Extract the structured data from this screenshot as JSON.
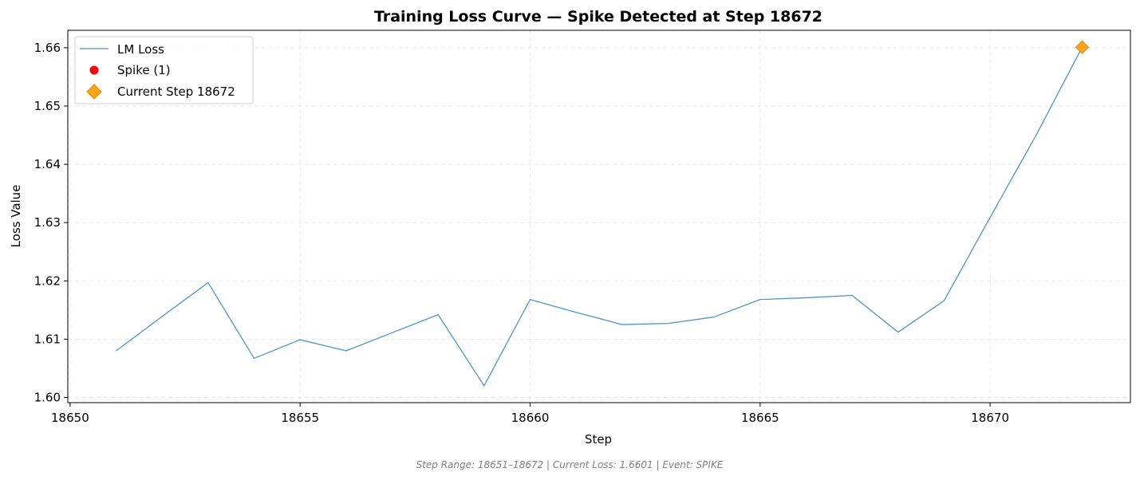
{
  "colors": {
    "line": "#4a96c6",
    "spike": "#ff0000",
    "current": "#ffa31a",
    "current_edge": "#e08a00",
    "grid": "#e3e3e3"
  },
  "chart_data": {
    "type": "line",
    "title": "Training Loss Curve — Spike Detected at Step 18672",
    "xlabel": "Step",
    "ylabel": "Loss Value",
    "xlim": [
      18649.95,
      18673.05
    ],
    "ylim": [
      1.5991,
      1.663
    ],
    "xticks": [
      18650,
      18655,
      18660,
      18665,
      18670
    ],
    "yticks": [
      1.6,
      1.61,
      1.62,
      1.63,
      1.64,
      1.65,
      1.66
    ],
    "ytick_labels": [
      "1.60",
      "1.61",
      "1.62",
      "1.63",
      "1.64",
      "1.65",
      "1.66"
    ],
    "grid": true,
    "legend_position": "top-left",
    "series": [
      {
        "name": "LM Loss",
        "x": [
          18651,
          18652,
          18653,
          18654,
          18655,
          18656,
          18657,
          18658,
          18659,
          18660,
          18661,
          18662,
          18663,
          18664,
          18665,
          18666,
          18667,
          18668,
          18669,
          18670,
          18671,
          18672
        ],
        "y": [
          1.608,
          1.6139,
          1.6197,
          1.6067,
          1.6099,
          1.608,
          1.6111,
          1.6142,
          1.602,
          1.6168,
          1.6146,
          1.6125,
          1.6127,
          1.6138,
          1.6168,
          1.6171,
          1.6175,
          1.6112,
          1.6166,
          1.6309,
          1.645,
          1.6601
        ]
      }
    ],
    "spike": {
      "name": "Spike (1)",
      "x": [
        18672
      ],
      "y": [
        1.6601
      ]
    },
    "current": {
      "name": "Current Step 18672",
      "x": 18672,
      "y": 1.6601
    }
  },
  "footer": "Step Range: 18651–18672 | Current Loss: 1.6601 | Event: SPIKE"
}
